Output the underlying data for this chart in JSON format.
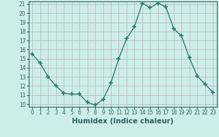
{
  "x": [
    0,
    1,
    2,
    3,
    4,
    5,
    6,
    7,
    8,
    9,
    10,
    11,
    12,
    13,
    14,
    15,
    16,
    17,
    18,
    19,
    20,
    21,
    22,
    23
  ],
  "y": [
    15.5,
    14.5,
    13.0,
    12.0,
    11.2,
    11.1,
    11.1,
    10.2,
    9.9,
    10.5,
    12.3,
    15.0,
    17.2,
    18.5,
    21.1,
    20.6,
    21.1,
    20.7,
    18.3,
    17.5,
    15.1,
    13.1,
    12.2,
    11.3
  ],
  "line_color": "#2d7a6e",
  "marker": "+",
  "marker_size": 4,
  "marker_linewidth": 1.2,
  "bg_color": "#cceee8",
  "grid_color": "#c0b8c0",
  "axis_color": "#2d6060",
  "xlabel": "Humidex (Indice chaleur)",
  "ylim": [
    9.7,
    21.3
  ],
  "xlim": [
    -0.5,
    23.5
  ],
  "yticks": [
    10,
    11,
    12,
    13,
    14,
    15,
    16,
    17,
    18,
    19,
    20,
    21
  ],
  "xticks": [
    0,
    1,
    2,
    3,
    4,
    5,
    6,
    7,
    8,
    9,
    10,
    11,
    12,
    13,
    14,
    15,
    16,
    17,
    18,
    19,
    20,
    21,
    22,
    23
  ],
  "label_fontsize": 7.5,
  "tick_fontsize": 5.5,
  "linewidth": 1.0
}
